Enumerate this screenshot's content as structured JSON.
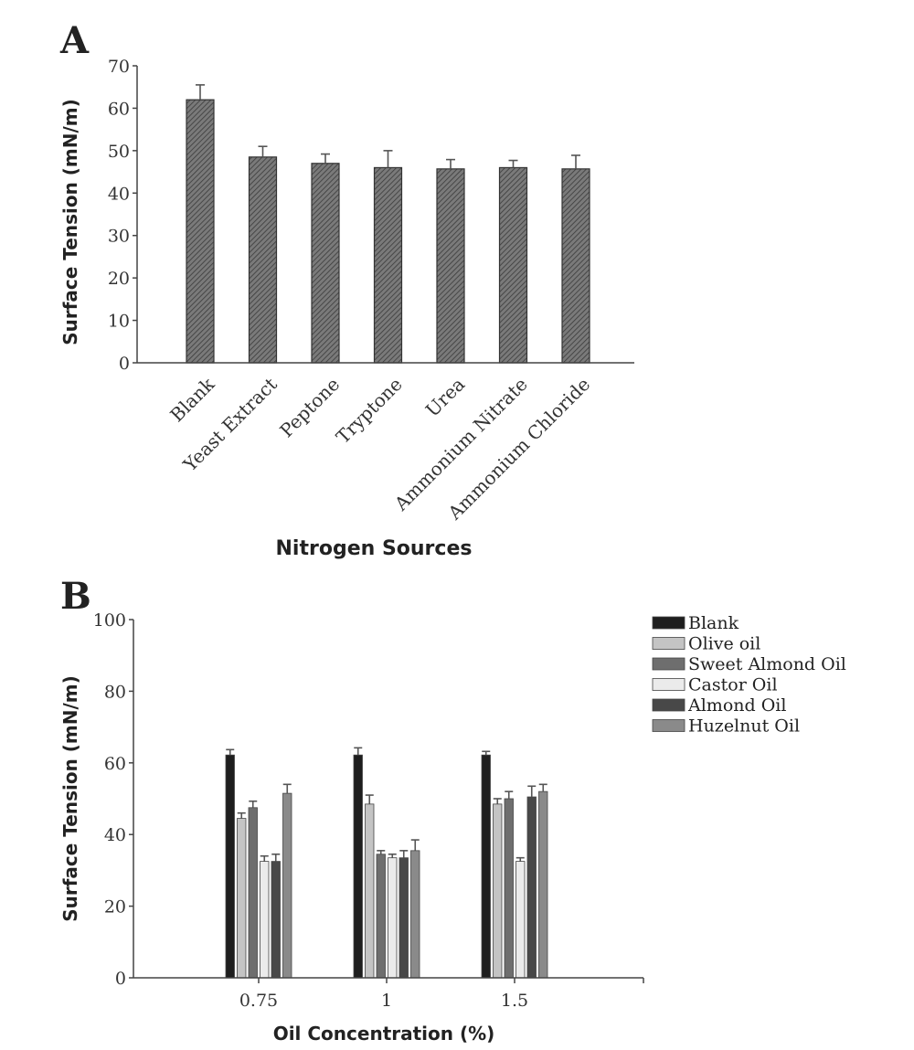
{
  "chart_data": [
    {
      "type": "bar",
      "panel": "A",
      "categories": [
        "Blank",
        "Yeast Extract",
        "Peptone",
        "Tryptone",
        "Urea",
        "Ammonium Nitrate",
        "Ammonium Chloride"
      ],
      "values": [
        62,
        48.5,
        47,
        46,
        45.7,
        46,
        45.7
      ],
      "errors": [
        3.5,
        2.5,
        2.2,
        4,
        2.2,
        1.7,
        3.2
      ],
      "xlabel": "Nitrogen Sources",
      "ylabel": "Surface Tension (mN/m)",
      "ylim": [
        0,
        70
      ],
      "yticks": [
        0,
        10,
        20,
        30,
        40,
        50,
        60,
        70
      ],
      "grid": false,
      "bar_color": "#6b6b6b"
    },
    {
      "type": "bar",
      "panel": "B",
      "categories": [
        "0.75",
        "1",
        "1.5"
      ],
      "series": [
        {
          "name": "Blank",
          "values": [
            62.2,
            62.2,
            62.2
          ],
          "errors": [
            1.5,
            2,
            1
          ],
          "color": "#1e1e1e"
        },
        {
          "name": "Olive oil",
          "values": [
            44.5,
            48.5,
            48.5
          ],
          "errors": [
            1.5,
            2.5,
            1.5
          ],
          "color": "#c4c4c4"
        },
        {
          "name": "Sweet Almond Oil",
          "values": [
            47.5,
            34.5,
            50
          ],
          "errors": [
            1.8,
            1,
            2
          ],
          "color": "#6e6e6e"
        },
        {
          "name": "Castor Oil",
          "values": [
            32.5,
            33.5,
            32.5
          ],
          "errors": [
            1.5,
            1,
            1
          ],
          "color": "#ebebeb"
        },
        {
          "name": "Almond Oil",
          "values": [
            32.5,
            33.5,
            50.5
          ],
          "errors": [
            2,
            2,
            3
          ],
          "color": "#484848"
        },
        {
          "name": "Huzelnut Oil",
          "values": [
            51.5,
            35.5,
            52
          ],
          "errors": [
            2.5,
            3,
            2
          ],
          "color": "#8a8a8a"
        }
      ],
      "xlabel": "Oil Concentration (%)",
      "ylabel": "Surface Tension (mN/m)",
      "ylim": [
        0,
        100
      ],
      "yticks": [
        0,
        20,
        40,
        60,
        80,
        100
      ],
      "grid": false,
      "legend": "top-right"
    }
  ],
  "panels": {
    "a_letter": "A",
    "b_letter": "B"
  }
}
